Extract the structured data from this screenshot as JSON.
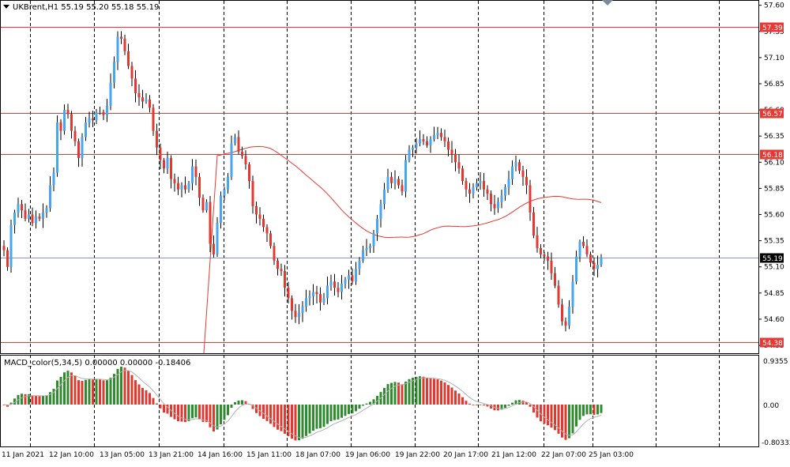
{
  "header": {
    "symbol_text": "UKBrent,H1  55.19 55.20 55.18 55.19",
    "menu_icon": "triangle-down-icon"
  },
  "macd": {
    "label": "MACD_color(5,34,5) 0.00000 0.00000 -0.18406",
    "scale_top": "0.9355",
    "scale_mid": "0.00",
    "scale_bottom": "-0.80333"
  },
  "price_axis": {
    "labels": [
      "57.60",
      "57.35",
      "57.10",
      "56.85",
      "56.60",
      "56.35",
      "56.10",
      "55.85",
      "55.60",
      "55.35",
      "55.10",
      "54.85",
      "54.60",
      "54.35"
    ]
  },
  "levels": [
    {
      "label": "57.39",
      "value": 57.39
    },
    {
      "label": "56.57",
      "value": 56.57
    },
    {
      "label": "56.18",
      "value": 56.18
    },
    {
      "label": "54.38",
      "value": 54.38
    }
  ],
  "current_price": {
    "label": "55.19",
    "value": 55.19
  },
  "time_axis": {
    "labels": [
      "11 Jan 2021",
      "12 Jan 10:00",
      "13 Jan 05:00",
      "13 Jan 21:00",
      "14 Jan 16:00",
      "15 Jan 11:00",
      "18 Jan 07:00",
      "19 Jan 06:00",
      "19 Jan 22:00",
      "20 Jan 17:00",
      "21 Jan 12:00",
      "22 Jan 07:00",
      "25 Jan 03:00"
    ]
  },
  "colors": {
    "bull": "#47a6f0",
    "bear": "#e2382f",
    "level": "#e53935",
    "ma": "#e53935",
    "macd_up": "#2e8b2e",
    "macd_down": "#e2382f",
    "grid": "#000000",
    "label_bg": "#e53935",
    "current_bg": "#000000"
  },
  "chart_data": {
    "type": "candlestick",
    "price_range": [
      54.29,
      57.62
    ],
    "closes": [
      55.26,
      55.1,
      55.5,
      55.62,
      55.7,
      55.64,
      55.56,
      55.6,
      55.52,
      55.58,
      55.56,
      55.62,
      55.66,
      55.88,
      56.0,
      56.48,
      56.4,
      56.6,
      56.56,
      56.4,
      56.3,
      56.14,
      56.34,
      56.48,
      56.52,
      56.5,
      56.58,
      56.58,
      56.55,
      56.64,
      56.86,
      57.06,
      57.3,
      57.28,
      57.16,
      57.02,
      56.9,
      56.76,
      56.72,
      56.68,
      56.7,
      56.62,
      56.4,
      56.24,
      56.12,
      56.04,
      56.14,
      55.94,
      55.9,
      55.84,
      55.88,
      55.84,
      55.9,
      56.06,
      55.96,
      55.76,
      55.64,
      55.72,
      55.32,
      55.22,
      55.52,
      55.78,
      55.84,
      55.96,
      56.28,
      56.34,
      56.2,
      56.16,
      56.08,
      55.92,
      55.68,
      55.6,
      55.56,
      55.48,
      55.42,
      55.3,
      55.16,
      55.08,
      55.06,
      54.9,
      54.8,
      54.68,
      54.62,
      54.66,
      54.72,
      54.8,
      54.82,
      54.86,
      54.84,
      54.76,
      54.8,
      54.92,
      54.96,
      54.9,
      54.86,
      54.94,
      54.98,
      55.02,
      54.96,
      55.08,
      55.16,
      55.26,
      55.28,
      55.3,
      55.42,
      55.56,
      55.7,
      55.84,
      55.96,
      55.9,
      55.94,
      55.88,
      55.82,
      56.12,
      56.22,
      56.24,
      56.28,
      56.32,
      56.3,
      56.26,
      56.32,
      56.36,
      56.38,
      56.34,
      56.3,
      56.22,
      56.18,
      56.1,
      56.04,
      55.92,
      55.84,
      55.8,
      55.86,
      55.9,
      55.92,
      55.84,
      55.8,
      55.7,
      55.66,
      55.72,
      55.78,
      55.86,
      55.94,
      56.06,
      56.1,
      56.02,
      55.96,
      55.88,
      55.62,
      55.4,
      55.28,
      55.22,
      55.2,
      55.16,
      55.04,
      54.92,
      54.74,
      54.58,
      54.54,
      54.72,
      54.96,
      55.2,
      55.34,
      55.3,
      55.22,
      55.14,
      55.08,
      55.12,
      55.19
    ]
  }
}
